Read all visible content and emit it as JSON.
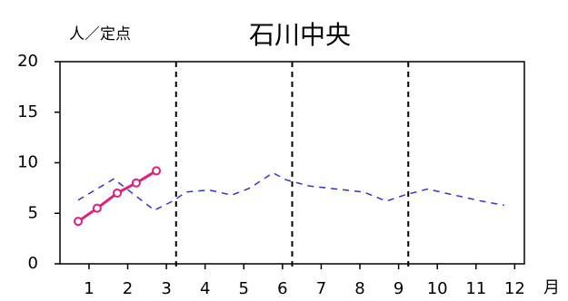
{
  "chart_data": {
    "type": "line",
    "title": "石川中央",
    "y_label": "人／定点",
    "x_label": "月",
    "xlim": [
      0,
      12
    ],
    "ylim": [
      0,
      20
    ],
    "yticks": [
      0,
      5,
      10,
      15,
      20
    ],
    "xticks": [
      {
        "value": 0.75,
        "label": "1"
      },
      {
        "value": 1.75,
        "label": "2"
      },
      {
        "value": 2.75,
        "label": "3"
      },
      {
        "value": 3.75,
        "label": "4"
      },
      {
        "value": 4.75,
        "label": "5"
      },
      {
        "value": 5.75,
        "label": "6"
      },
      {
        "value": 6.75,
        "label": "7"
      },
      {
        "value": 7.75,
        "label": "8"
      },
      {
        "value": 8.75,
        "label": "9"
      },
      {
        "value": 9.75,
        "label": "10"
      },
      {
        "value": 10.75,
        "label": "11"
      },
      {
        "value": 11.75,
        "label": "12"
      }
    ],
    "vlines": [
      3,
      6,
      9
    ],
    "series": [
      {
        "color": "#3333cc",
        "style": "dashed",
        "markers": "none",
        "x": [
          0.47,
          1.39,
          2.44,
          2.91,
          3.26,
          3.85,
          4.44,
          4.91,
          5.5,
          5.85,
          6.44,
          7.14,
          7.85,
          8.43,
          8.9,
          9.49,
          10.19,
          10.9,
          11.48
        ],
        "values": [
          6.3,
          8.4,
          5.3,
          6.2,
          7.1,
          7.3,
          6.8,
          7.5,
          9.0,
          8.3,
          7.7,
          7.4,
          7.1,
          6.2,
          6.8,
          7.4,
          6.8,
          6.2,
          5.8
        ]
      },
      {
        "color": "#e0207a",
        "style": "solid",
        "markers": "circle",
        "x": [
          0.47,
          0.96,
          1.48,
          1.97,
          2.49
        ],
        "values": [
          4.2,
          5.5,
          7.0,
          8.0,
          9.2
        ]
      }
    ]
  }
}
